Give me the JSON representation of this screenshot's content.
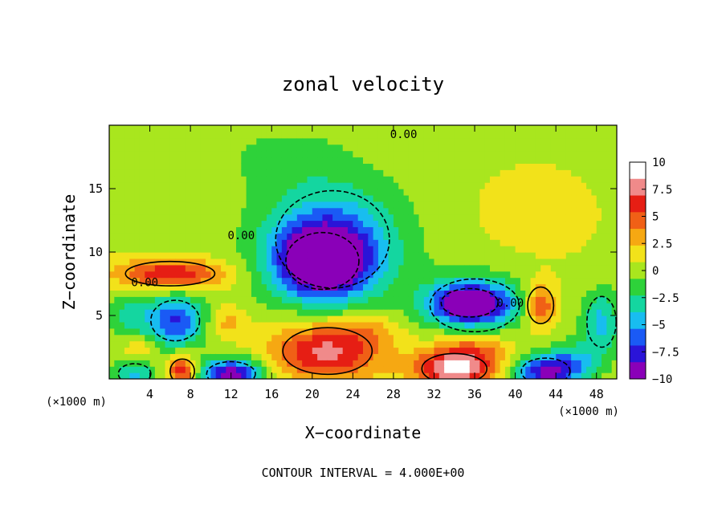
{
  "chart_data": {
    "type": "heatmap",
    "title": "zonal velocity",
    "xlabel": "X−coordinate",
    "ylabel": "Z−coordinate",
    "x_unit_left": "(×1000 m)",
    "x_unit_right": "(×1000 m)",
    "footer": "CONTOUR INTERVAL = 4.000E+00",
    "xlim": [
      0,
      50
    ],
    "ylim": [
      0,
      20
    ],
    "x_ticks": [
      4,
      8,
      12,
      16,
      20,
      24,
      28,
      32,
      36,
      40,
      44,
      48
    ],
    "y_ticks": [
      5,
      10,
      15
    ],
    "x_tick_labels": [
      "4",
      "8",
      "12",
      "16",
      "20",
      "24",
      "28",
      "32",
      "36",
      "40",
      "44",
      "48"
    ],
    "y_tick_labels": [
      "5",
      "10",
      "15"
    ],
    "contour_labels": [
      {
        "text": "0.00",
        "x": 29,
        "y": 19
      },
      {
        "text": "0.00",
        "x": 13,
        "y": 11
      },
      {
        "text": "0.00",
        "x": 3.5,
        "y": 7.3
      },
      {
        "text": "0.00",
        "x": 39.5,
        "y": 5.7
      }
    ],
    "colorbar": {
      "min": -10,
      "max": 10,
      "labels": [
        "10",
        "7.5",
        "5",
        "2.5",
        "0",
        "−2.5",
        "−5",
        "−7.5",
        "−10"
      ],
      "values": [
        10,
        7.5,
        5,
        2.5,
        0,
        -2.5,
        -5,
        -7.5,
        -10
      ],
      "colors": [
        "#8a00b8",
        "#2a14d8",
        "#1a5af5",
        "#18bdf0",
        "#14d6a0",
        "#2ed23a",
        "#a9e61e",
        "#f2e21a",
        "#f6a812",
        "#f06016",
        "#e61e14",
        "#f08a8a",
        "#ffffff"
      ]
    },
    "features": [
      {
        "kind": "low",
        "cx": 21,
        "cy": 9.3,
        "rx": 4.5,
        "ry": 2.8,
        "value": -12
      },
      {
        "kind": "low",
        "cx": 22,
        "cy": 11,
        "rx": 7,
        "ry": 4.8,
        "value": -6
      },
      {
        "kind": "low",
        "cx": 35.5,
        "cy": 6,
        "rx": 3.5,
        "ry": 1.4,
        "value": -10
      },
      {
        "kind": "low",
        "cx": 36,
        "cy": 5.8,
        "rx": 5.5,
        "ry": 2.6,
        "value": -5
      },
      {
        "kind": "low",
        "cx": 6.5,
        "cy": 4.6,
        "rx": 3,
        "ry": 2,
        "value": -8
      },
      {
        "kind": "low",
        "cx": 2,
        "cy": 5,
        "rx": 2,
        "ry": 2,
        "value": -3
      },
      {
        "kind": "low",
        "cx": 48.5,
        "cy": 4.5,
        "rx": 1.8,
        "ry": 2.5,
        "value": -5
      },
      {
        "kind": "low",
        "cx": 17,
        "cy": 17.5,
        "rx": 6,
        "ry": 2.5,
        "value": -1.5
      },
      {
        "kind": "low",
        "cx": 12,
        "cy": 0.4,
        "rx": 3,
        "ry": 1.2,
        "value": -11
      },
      {
        "kind": "low",
        "cx": 43,
        "cy": 0.6,
        "rx": 3,
        "ry": 1.3,
        "value": -10
      },
      {
        "kind": "low",
        "cx": 2.5,
        "cy": 0.4,
        "rx": 2,
        "ry": 1,
        "value": -5
      },
      {
        "kind": "low",
        "cx": 46,
        "cy": 1.5,
        "rx": 2.5,
        "ry": 1.5,
        "value": -4
      },
      {
        "kind": "high",
        "cx": 21.5,
        "cy": 2.2,
        "rx": 5.5,
        "ry": 2.3,
        "value": 8
      },
      {
        "kind": "high",
        "cx": 34,
        "cy": 0.8,
        "rx": 4,
        "ry": 1.5,
        "value": 9
      },
      {
        "kind": "high",
        "cx": 36,
        "cy": 2.5,
        "rx": 4,
        "ry": 1.5,
        "value": 4
      },
      {
        "kind": "high",
        "cx": 6,
        "cy": 8.3,
        "rx": 5.5,
        "ry": 1.2,
        "value": 7
      },
      {
        "kind": "high",
        "cx": 42.5,
        "cy": 5.8,
        "rx": 1.6,
        "ry": 1.8,
        "value": 6
      },
      {
        "kind": "high",
        "cx": 7.2,
        "cy": 0.6,
        "rx": 1.5,
        "ry": 1.2,
        "value": 7
      },
      {
        "kind": "high",
        "cx": 11.5,
        "cy": 4.5,
        "rx": 2,
        "ry": 1.3,
        "value": 3
      },
      {
        "kind": "high",
        "cx": 3,
        "cy": 2.5,
        "rx": 1.5,
        "ry": 1,
        "value": 3
      },
      {
        "kind": "high",
        "cx": 42,
        "cy": 13,
        "rx": 8,
        "ry": 5,
        "value": 1
      },
      {
        "kind": "high",
        "cx": 26,
        "cy": 4,
        "rx": 3,
        "ry": 1.2,
        "value": 2
      }
    ]
  }
}
